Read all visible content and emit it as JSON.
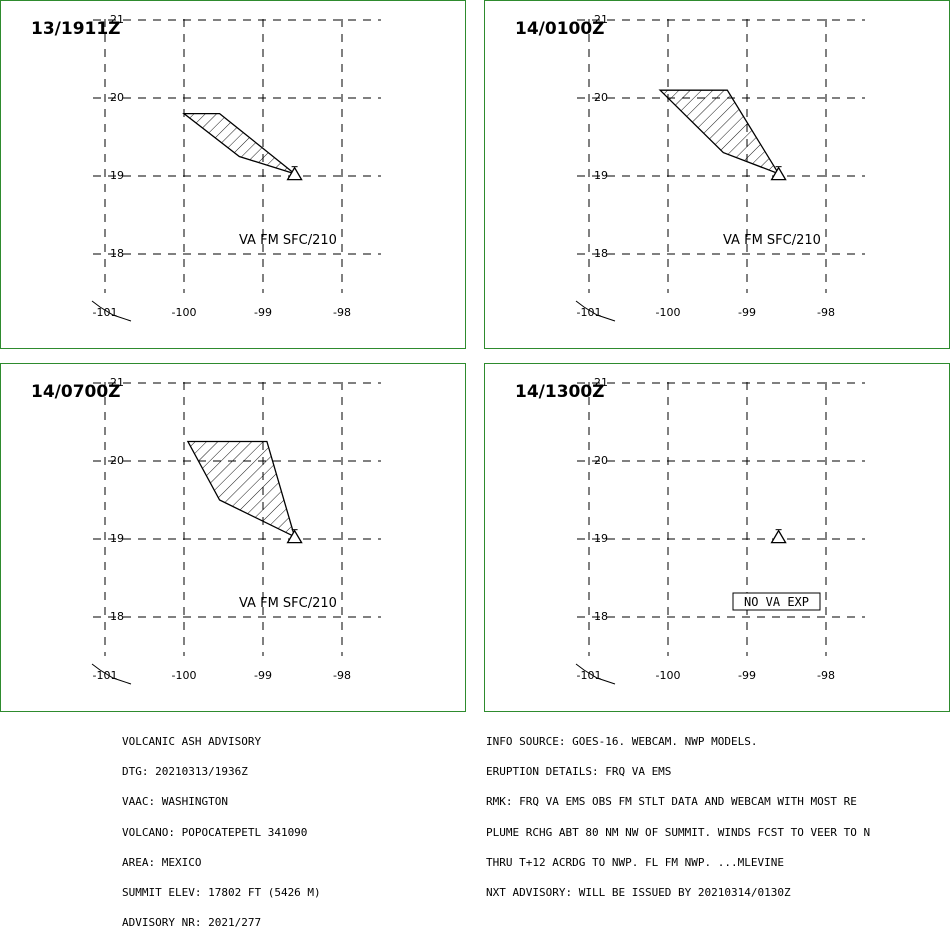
{
  "map_panels": [
    {
      "time": "13/1911Z",
      "lat_labels": [
        "21",
        "20",
        "19",
        "18"
      ],
      "lon_labels": [
        "-101",
        "-100",
        "-99",
        "-98"
      ],
      "ash_label": "VA FM SFC/210",
      "has_ash": true,
      "ash_polygon_lonlat": [
        [
          -100.0,
          19.8
        ],
        [
          -99.55,
          19.8
        ],
        [
          -98.6,
          19.03
        ],
        [
          -99.3,
          19.25
        ]
      ]
    },
    {
      "time": "14/0100Z",
      "lat_labels": [
        "21",
        "20",
        "19",
        "18"
      ],
      "lon_labels": [
        "-101",
        "-100",
        "-99",
        "-98"
      ],
      "ash_label": "VA FM SFC/210",
      "has_ash": true,
      "ash_polygon_lonlat": [
        [
          -100.1,
          20.1
        ],
        [
          -99.25,
          20.1
        ],
        [
          -98.6,
          19.03
        ],
        [
          -99.3,
          19.3
        ]
      ]
    },
    {
      "time": "14/0700Z",
      "lat_labels": [
        "21",
        "20",
        "19",
        "18"
      ],
      "lon_labels": [
        "-101",
        "-100",
        "-99",
        "-98"
      ],
      "ash_label": "VA FM SFC/210",
      "has_ash": true,
      "ash_polygon_lonlat": [
        [
          -99.95,
          20.25
        ],
        [
          -98.95,
          20.25
        ],
        [
          -98.6,
          19.03
        ],
        [
          -99.55,
          19.5
        ]
      ]
    },
    {
      "time": "14/1300Z",
      "lat_labels": [
        "21",
        "20",
        "19",
        "18"
      ],
      "lon_labels": [
        "-101",
        "-100",
        "-99",
        "-98"
      ],
      "ash_label": "NO VA EXP",
      "has_ash": false,
      "ash_polygon_lonlat": []
    }
  ],
  "advisory_left": [
    "VOLCANIC ASH ADVISORY",
    "DTG: 20210313/1936Z",
    "VAAC: WASHINGTON",
    "VOLCANO: POPOCATEPETL 341090",
    "AREA: MEXICO",
    "SUMMIT ELEV: 17802 FT (5426 M)",
    "ADVISORY NR: 2021/277"
  ],
  "advisory_right": [
    "INFO SOURCE: GOES-16. WEBCAM. NWP MODELS.",
    "ERUPTION DETAILS: FRQ VA EMS",
    "RMK: FRQ VA EMS OBS FM STLT DATA AND WEBCAM WITH MOST RE",
    "PLUME RCHG ABT 80 NM NW OF SUMMIT. WINDS FCST TO VEER TO N",
    "THRU T+12 ACRDG TO NWP. FL FM NWP. ...MLEVINE",
    "NXT ADVISORY: WILL BE ISSUED BY 20210314/0130Z"
  ],
  "colors": {
    "panel_border": "#2e8b2e",
    "grid": "#000000",
    "background": "#ffffff"
  },
  "icons": {
    "volcano": "volcano-triangle-icon"
  }
}
